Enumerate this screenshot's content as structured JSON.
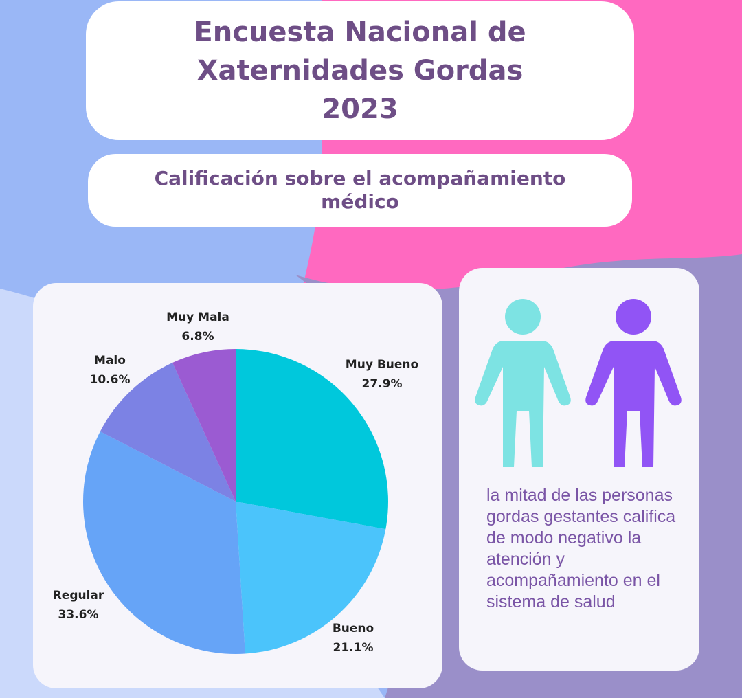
{
  "header": {
    "title_lines": [
      "Encuesta Nacional de",
      "Xaternidades Gordas",
      "2023"
    ],
    "subtitle": "Calificación sobre el acompañamiento médico"
  },
  "colors": {
    "bg_blue": "#9ab7f6",
    "bg_pink": "#ff69c0",
    "bg_light_blue": "#cbd9fb",
    "bg_purple": "#9a8fc9",
    "title_text": "#6e4e86",
    "info_text": "#7a55a6",
    "person_teal": "#7de3e3",
    "person_purple": "#9154f5"
  },
  "chart_data": {
    "type": "pie",
    "slices": [
      {
        "label": "Muy Bueno",
        "value": 27.9,
        "value_label": "27.9%",
        "color": "#00c8dc"
      },
      {
        "label": "Bueno",
        "value": 21.1,
        "value_label": "21.1%",
        "color": "#4bc4fb"
      },
      {
        "label": "Regular",
        "value": 33.6,
        "value_label": "33.6%",
        "color": "#66a4f7"
      },
      {
        "label": "Malo",
        "value": 10.6,
        "value_label": "10.6%",
        "color": "#7c82e4"
      },
      {
        "label": "Muy Mala",
        "value": 6.8,
        "value_label": "6.8%",
        "color": "#9b5bd2"
      }
    ]
  },
  "info": {
    "icons": [
      "person-teal-icon",
      "person-purple-icon"
    ],
    "text": "la mitad de las personas gordas gestantes califica de modo negativo la atención y acompañamiento en el sistema de salud"
  }
}
